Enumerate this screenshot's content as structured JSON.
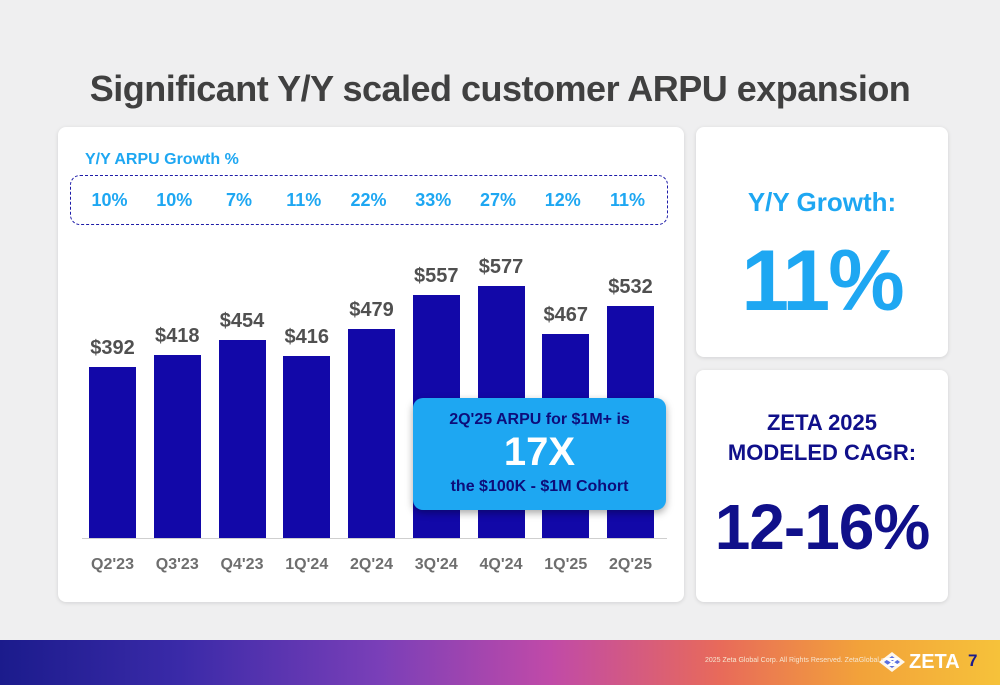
{
  "title": "Significant Y/Y scaled customer ARPU expansion",
  "chart_data": {
    "type": "bar",
    "title": "",
    "categories": [
      "Q2'23",
      "Q3'23",
      "Q4'23",
      "1Q'24",
      "2Q'24",
      "3Q'24",
      "4Q'24",
      "1Q'25",
      "2Q'25"
    ],
    "values": [
      392,
      418,
      454,
      416,
      479,
      557,
      577,
      467,
      532
    ],
    "value_labels": [
      "$392",
      "$418",
      "$454",
      "$416",
      "$479",
      "$557",
      "$577",
      "$467",
      "$532"
    ],
    "growth_label": "Y/Y ARPU Growth %",
    "growth_pct": [
      "10%",
      "10%",
      "7%",
      "11%",
      "22%",
      "33%",
      "27%",
      "12%",
      "11%"
    ],
    "ylim": [
      0,
      700
    ],
    "grid": false,
    "bar_color": "#1208a8"
  },
  "callout": {
    "line1": "2Q'25 ARPU for $1M+ is",
    "big": "17X",
    "line3": "the $100K - $1M Cohort"
  },
  "yoy": {
    "label": "Y/Y Growth:",
    "value": "11%"
  },
  "cagr": {
    "line1": "ZETA 2025",
    "line2": "MODELED CAGR:",
    "value": "12-16%"
  },
  "footer": {
    "text": "2025 Zeta Global Corp. All Rights Reserved. ZetaGlobal.com",
    "logo": "ZETA",
    "page": "7"
  },
  "colors": {
    "accent": "#1ea7f2",
    "navy": "#10108a",
    "bar": "#1208a8"
  }
}
